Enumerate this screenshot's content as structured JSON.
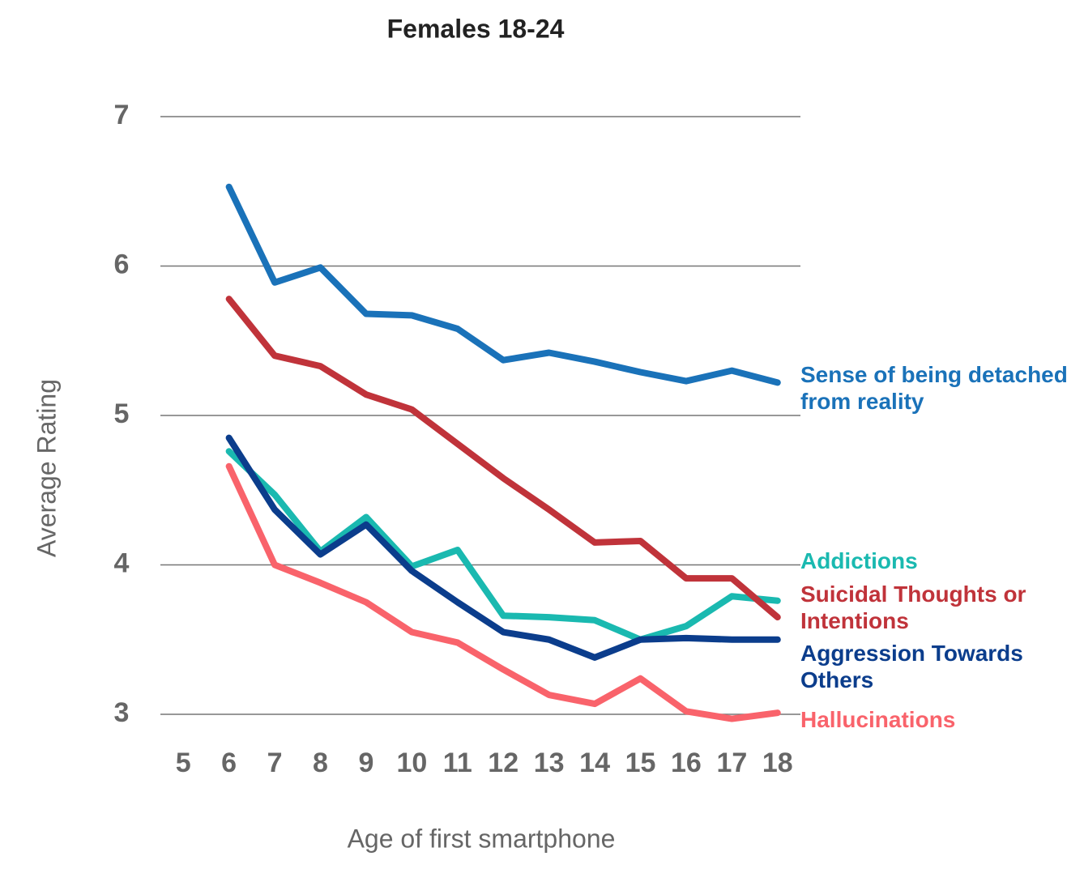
{
  "chart_data": {
    "type": "line",
    "title": "Females 18-24",
    "x_label": "Age of first smartphone",
    "y_label": "Average Rating",
    "categories": [
      "5",
      "6",
      "7",
      "8",
      "9",
      "10",
      "11",
      "12",
      "13",
      "14",
      "15",
      "16",
      "17",
      "18"
    ],
    "series": [
      {
        "name": "Sense of being detached from reality",
        "color": "#1a72b9",
        "values": [
          null,
          6.53,
          5.89,
          5.99,
          5.68,
          5.67,
          5.58,
          5.37,
          5.42,
          5.36,
          5.29,
          5.23,
          5.3,
          5.22
        ]
      },
      {
        "name": "Addictions",
        "color": "#1ab9b0",
        "values": [
          null,
          4.76,
          4.47,
          4.09,
          4.32,
          3.99,
          4.1,
          3.66,
          3.65,
          3.63,
          3.5,
          3.59,
          3.79,
          3.76
        ]
      },
      {
        "name": "Suicidal Thoughts or Intentions",
        "color": "#c0333a",
        "values": [
          null,
          5.78,
          5.4,
          5.33,
          5.14,
          5.04,
          4.81,
          4.58,
          4.37,
          4.15,
          4.16,
          3.91,
          3.91,
          3.65
        ]
      },
      {
        "name": "Aggression Towards Others",
        "color": "#0b3d8c",
        "values": [
          null,
          4.85,
          4.37,
          4.07,
          4.27,
          3.96,
          3.75,
          3.55,
          3.5,
          3.38,
          3.5,
          3.51,
          3.5,
          3.5
        ]
      },
      {
        "name": "Hallucinations",
        "color": "#f9636b",
        "values": [
          null,
          4.66,
          4.0,
          3.88,
          3.75,
          3.55,
          3.48,
          3.3,
          3.13,
          3.07,
          3.24,
          3.02,
          2.97,
          3.01
        ]
      }
    ],
    "ylim": [
      3,
      7
    ],
    "yticks": [
      3,
      4,
      5,
      6,
      7
    ],
    "grid": true
  }
}
